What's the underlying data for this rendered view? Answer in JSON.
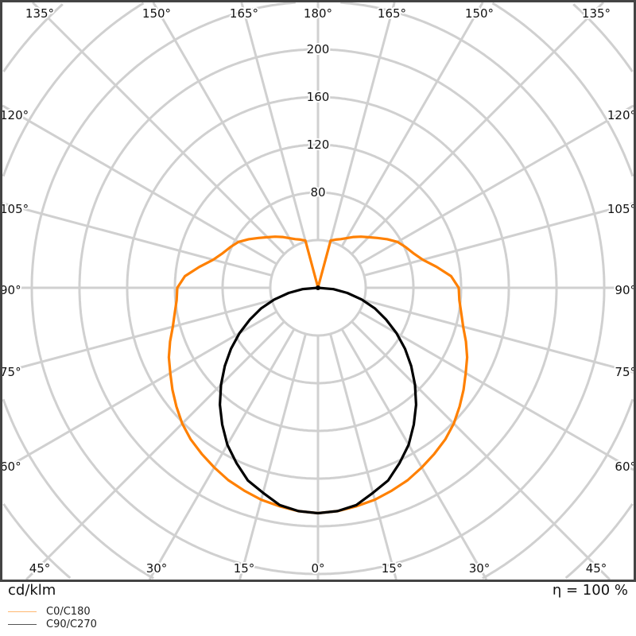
{
  "chart_data": {
    "type": "polar-line",
    "unit_label": "cd/klm",
    "efficiency_label": "η = 100 %",
    "radial_ticks": [
      40,
      80,
      120,
      160,
      200,
      240,
      280,
      320,
      360,
      400
    ],
    "radial_tick_labels": [
      "80",
      "120",
      "160",
      "200"
    ],
    "angle_step_deg": 15,
    "grid": true,
    "legend_position": "bottom-left",
    "angle_labels": {
      "top": [
        "135°",
        "150°",
        "165°",
        "180°",
        "165°",
        "150°",
        "135°"
      ],
      "left": [
        "120°",
        "105°",
        "90°",
        "75°",
        "60°"
      ],
      "right": [
        "120°",
        "105°",
        "90°",
        "75°",
        "60°"
      ],
      "bottom": [
        "45°",
        "30°",
        "15°",
        "0°",
        "15°",
        "30°",
        "45°"
      ]
    },
    "angles_deg": [
      0,
      5,
      10,
      15,
      20,
      25,
      30,
      35,
      40,
      45,
      50,
      55,
      60,
      65,
      70,
      75,
      80,
      85,
      90,
      95,
      100,
      105,
      110,
      115,
      120,
      125,
      130,
      135,
      140,
      145,
      150,
      155,
      160,
      165,
      170,
      175,
      180
    ],
    "series": [
      {
        "name": "C0/C180",
        "color": "#ff8000",
        "values": [
          189,
          188,
          186,
          184,
          181,
          178,
          174,
          170,
          166,
          161,
          155,
          149,
          143,
          138,
          132,
          126,
          122,
          119,
          118,
          112,
          101,
          91,
          85,
          81,
          77,
          71,
          65,
          60,
          56,
          52,
          48,
          45,
          43,
          41,
          1,
          0.5,
          0
        ]
      },
      {
        "name": "C90/C270",
        "color": "#000000",
        "values": [
          189,
          188,
          185,
          178,
          172,
          162,
          152,
          140,
          128,
          115,
          102,
          89,
          76,
          63,
          51,
          38,
          25,
          13,
          0,
          0,
          0,
          0,
          0,
          0,
          0,
          0,
          0,
          0,
          0,
          0,
          0,
          0,
          0,
          0,
          0,
          0,
          0
        ]
      }
    ]
  }
}
